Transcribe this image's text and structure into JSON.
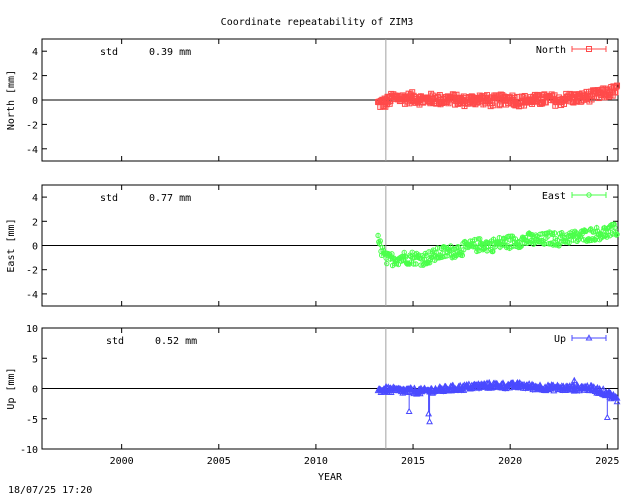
{
  "title": "Coordinate repeatability of ZIM3",
  "timestamp": "18/07/25 17:20",
  "chart_data": [
    {
      "type": "scatter",
      "title": "Coordinate repeatability of ZIM3",
      "xlabel": "",
      "ylabel": "North [mm]",
      "xlim": [
        1995.9,
        2025.55
      ],
      "ylim": [
        -5,
        5
      ],
      "yticks": [
        -4,
        -2,
        0,
        2,
        4
      ],
      "xticks": [
        2000,
        2005,
        2010,
        2015,
        2020,
        2025
      ],
      "show_xtick_labels": false,
      "grid": false,
      "legend_position": "top-right",
      "std_label": "std",
      "std_value": "0.39 mm",
      "vline_x": 2013.6,
      "series": [
        {
          "name": "North",
          "color": "#ff4a4a",
          "marker": "square",
          "x": [
            2013.2,
            2013.6,
            2014.0,
            2014.5,
            2015.0,
            2015.5,
            2016.0,
            2016.5,
            2017.0,
            2017.5,
            2018.0,
            2018.5,
            2019.0,
            2019.5,
            2020.0,
            2020.5,
            2021.0,
            2021.5,
            2022.0,
            2022.5,
            2023.0,
            2023.5,
            2024.0,
            2024.5,
            2025.0,
            2025.5
          ],
          "y": [
            -0.3,
            -0.2,
            0.2,
            0.1,
            0.2,
            0.0,
            0.1,
            0.0,
            0.1,
            -0.1,
            0.0,
            0.1,
            -0.1,
            0.0,
            0.1,
            -0.1,
            0.0,
            0.0,
            0.1,
            -0.1,
            0.2,
            0.1,
            0.3,
            0.4,
            0.6,
            0.8
          ],
          "spread": 0.45
        }
      ]
    },
    {
      "type": "scatter",
      "xlabel": "",
      "ylabel": "East [mm]",
      "xlim": [
        1995.9,
        2025.55
      ],
      "ylim": [
        -5,
        5
      ],
      "yticks": [
        -4,
        -2,
        0,
        2,
        4
      ],
      "xticks": [
        2000,
        2005,
        2010,
        2015,
        2020,
        2025
      ],
      "show_xtick_labels": false,
      "grid": false,
      "legend_position": "top-right",
      "std_label": "std",
      "std_value": "0.77 mm",
      "vline_x": 2013.6,
      "series": [
        {
          "name": "East",
          "color": "#4aff4a",
          "marker": "circle",
          "x": [
            2013.2,
            2013.6,
            2014.0,
            2014.5,
            2015.0,
            2015.5,
            2016.0,
            2016.5,
            2017.0,
            2017.5,
            2018.0,
            2018.5,
            2019.0,
            2019.5,
            2020.0,
            2020.5,
            2021.0,
            2021.5,
            2022.0,
            2022.5,
            2023.0,
            2023.5,
            2024.0,
            2024.5,
            2025.0,
            2025.5
          ],
          "y": [
            0.4,
            -1.2,
            -1.1,
            -1.0,
            -1.0,
            -1.1,
            -0.9,
            -0.6,
            -0.5,
            -0.3,
            -0.1,
            0.1,
            0.0,
            0.2,
            0.3,
            0.4,
            0.5,
            0.4,
            0.6,
            0.5,
            0.7,
            0.7,
            0.9,
            1.0,
            1.1,
            1.3
          ],
          "spread": 0.55
        }
      ]
    },
    {
      "type": "scatter",
      "xlabel": "YEAR",
      "ylabel": "Up [mm]",
      "xlim": [
        1995.9,
        2025.55
      ],
      "ylim": [
        -10,
        10
      ],
      "yticks": [
        -10,
        -5,
        0,
        5,
        10
      ],
      "xticks": [
        2000,
        2005,
        2010,
        2015,
        2020,
        2025
      ],
      "show_xtick_labels": true,
      "grid": false,
      "legend_position": "top-right",
      "std_label": "std",
      "std_value": "0.52 mm",
      "vline_x": 2013.6,
      "series": [
        {
          "name": "Up",
          "color": "#4a4aff",
          "marker": "triangle",
          "x": [
            2013.2,
            2013.6,
            2014.0,
            2014.5,
            2015.0,
            2015.5,
            2016.0,
            2016.5,
            2017.0,
            2017.5,
            2018.0,
            2018.5,
            2019.0,
            2019.5,
            2020.0,
            2020.5,
            2021.0,
            2021.5,
            2022.0,
            2022.5,
            2023.0,
            2023.5,
            2024.0,
            2024.5,
            2025.0,
            2025.5
          ],
          "y": [
            -0.3,
            -0.2,
            -0.3,
            -0.4,
            -0.4,
            -0.5,
            -0.3,
            -0.2,
            0.0,
            0.1,
            0.3,
            0.4,
            0.5,
            0.5,
            0.4,
            0.5,
            0.3,
            0.2,
            0.1,
            0.1,
            0.0,
            0.1,
            0.1,
            -0.3,
            -0.8,
            -1.8
          ],
          "spread": 0.5,
          "outliers": [
            [
              2014.8,
              -3.8
            ],
            [
              2015.8,
              -4.2
            ],
            [
              2015.85,
              -5.5
            ],
            [
              2025.0,
              -4.8
            ],
            [
              2025.5,
              -2.2
            ],
            [
              2023.3,
              1.3
            ]
          ]
        }
      ]
    }
  ]
}
